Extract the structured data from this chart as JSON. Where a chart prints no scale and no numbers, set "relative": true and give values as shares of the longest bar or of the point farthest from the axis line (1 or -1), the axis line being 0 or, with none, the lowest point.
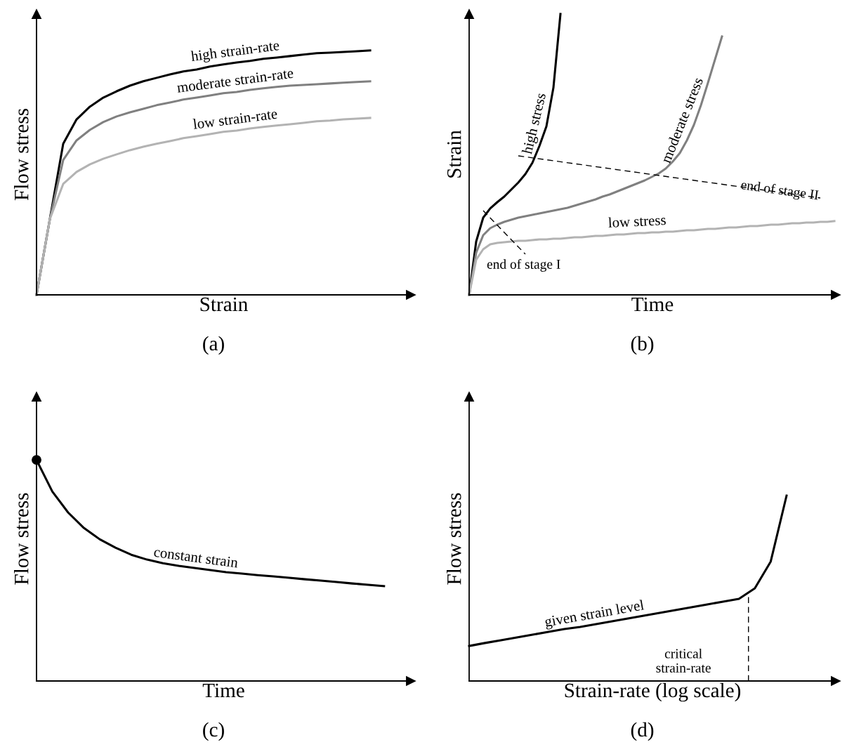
{
  "chart_data": [
    {
      "type": "line",
      "relative": true,
      "tick_labels": false,
      "title": "(a)",
      "xlabel": "Strain",
      "ylabel": "Flow stress",
      "categories": [
        null,
        null,
        null,
        null,
        null,
        null,
        null,
        null,
        null,
        null,
        null,
        null,
        null,
        null,
        null,
        null,
        null,
        null,
        null,
        null,
        null,
        null,
        null,
        null,
        null,
        null
      ],
      "series": [
        {
          "name": "high strain-rate",
          "color": "#000000",
          "values": [
            0,
            0.31,
            0.618,
            0.718,
            0.77,
            0.807,
            0.833,
            0.856,
            0.874,
            0.888,
            0.902,
            0.914,
            0.922,
            0.934,
            0.943,
            0.951,
            0.957,
            0.966,
            0.971,
            0.977,
            0.983,
            0.989,
            0.991,
            0.994,
            0.997,
            1
          ]
        },
        {
          "name": "moderate strain-rate",
          "color": "#808080",
          "values": [
            0,
            0.31,
            0.552,
            0.632,
            0.675,
            0.707,
            0.73,
            0.747,
            0.761,
            0.776,
            0.787,
            0.799,
            0.807,
            0.816,
            0.825,
            0.83,
            0.839,
            0.845,
            0.851,
            0.856,
            0.859,
            0.862,
            0.865,
            0.868,
            0.871,
            0.874
          ]
        },
        {
          "name": "low strain-rate",
          "color": "#b3b3b3",
          "values": [
            0,
            0.31,
            0.454,
            0.503,
            0.534,
            0.557,
            0.575,
            0.592,
            0.606,
            0.618,
            0.629,
            0.641,
            0.649,
            0.658,
            0.667,
            0.672,
            0.681,
            0.687,
            0.693,
            0.698,
            0.704,
            0.71,
            0.713,
            0.718,
            0.721,
            0.724
          ]
        }
      ]
    },
    {
      "type": "line",
      "relative": true,
      "tick_labels": false,
      "title": "(b)",
      "xlabel": "Time",
      "ylabel": "Strain",
      "annotations": [
        "end of stage I",
        "end of stage II"
      ],
      "categories": [
        null,
        null,
        null,
        null,
        null,
        null,
        null,
        null,
        null,
        null,
        null,
        null,
        null,
        null,
        null,
        null,
        null,
        null,
        null,
        null,
        null,
        null,
        null,
        null,
        null,
        null,
        null,
        null,
        null,
        null,
        null,
        null,
        null,
        null,
        null,
        null,
        null,
        null,
        null,
        null,
        null,
        null,
        null,
        null,
        null,
        null,
        null,
        null,
        null,
        null,
        null,
        null,
        null
      ],
      "series": [
        {
          "name": "high stress",
          "color": "#000000",
          "values": [
            0,
            0.19,
            0.275,
            0.308,
            0.33,
            0.35,
            0.375,
            0.4,
            0.43,
            0.47,
            0.53,
            0.6,
            0.738,
            1.0,
            null,
            null,
            null,
            null,
            null,
            null,
            null,
            null,
            null,
            null,
            null,
            null,
            null,
            null,
            null,
            null,
            null,
            null,
            null,
            null,
            null,
            null,
            null,
            null,
            null,
            null,
            null,
            null,
            null,
            null,
            null,
            null,
            null,
            null,
            null,
            null,
            null,
            null,
            null
          ]
        },
        {
          "name": "moderate stress",
          "color": "#808080",
          "values": [
            0,
            0.15,
            0.2125,
            0.2375,
            0.25,
            0.26,
            0.2675,
            0.275,
            0.28,
            0.285,
            0.29,
            0.295,
            0.3,
            0.305,
            0.31,
            0.3175,
            0.325,
            0.3325,
            0.34,
            0.35,
            0.3575,
            0.3675,
            0.3775,
            0.3875,
            0.3975,
            0.4075,
            0.42,
            0.4325,
            0.45,
            0.475,
            0.505,
            0.55,
            0.605,
            0.675,
            0.755,
            0.8375,
            0.92,
            null,
            null,
            null,
            null,
            null,
            null,
            null,
            null,
            null,
            null,
            null,
            null,
            null,
            null,
            null,
            null
          ]
        },
        {
          "name": "low stress",
          "color": "#b3b3b3",
          "values": [
            0,
            0.125,
            0.1625,
            0.18,
            0.185,
            0.1875,
            0.19,
            0.1925,
            0.1925,
            0.195,
            0.1975,
            0.1975,
            0.2,
            0.2,
            0.2025,
            0.205,
            0.205,
            0.2075,
            0.21,
            0.21,
            0.2125,
            0.215,
            0.215,
            0.2175,
            0.22,
            0.22,
            0.2225,
            0.2225,
            0.225,
            0.225,
            0.2275,
            0.23,
            0.23,
            0.2325,
            0.235,
            0.235,
            0.2375,
            0.24,
            0.24,
            0.2425,
            0.245,
            0.245,
            0.2475,
            0.25,
            0.25,
            0.2525,
            0.255,
            0.255,
            0.2575,
            0.2575,
            0.26,
            0.26,
            0.2625
          ]
        },
        {
          "color": "#000000",
          "line_style": "dashed",
          "values": [
            null,
            null,
            null,
            null,
            null,
            null,
            null,
            0.495,
            null,
            null,
            null,
            null,
            null,
            null,
            null,
            null,
            null,
            null,
            null,
            null,
            null,
            null,
            null,
            null,
            null,
            null,
            null,
            null,
            null,
            null,
            null,
            null,
            null,
            null,
            null,
            null,
            null,
            null,
            null,
            null,
            null,
            null,
            null,
            null,
            null,
            null,
            null,
            null,
            null,
            null,
            0.345,
            null,
            null
          ]
        },
        {
          "color": "#000000",
          "line_style": "dashed",
          "values": [
            null,
            null,
            0.3,
            null,
            null,
            null,
            null,
            null,
            0.145,
            null,
            null,
            null,
            null,
            null,
            null,
            null,
            null,
            null,
            null,
            null,
            null,
            null,
            null,
            null,
            null,
            null,
            null,
            null,
            null,
            null,
            null,
            null,
            null,
            null,
            null,
            null,
            null,
            null,
            null,
            null,
            null,
            null,
            null,
            null,
            null,
            null,
            null,
            null,
            null,
            null,
            null,
            null,
            null
          ]
        }
      ]
    },
    {
      "type": "line",
      "relative": true,
      "tick_labels": false,
      "title": "(c)",
      "xlabel": "Time",
      "ylabel": "Flow stress",
      "categories": [
        null,
        null,
        null,
        null,
        null,
        null,
        null,
        null,
        null,
        null,
        null,
        null,
        null,
        null,
        null,
        null,
        null,
        null,
        null,
        null,
        null,
        null,
        null
      ],
      "series": [
        {
          "name": "constant strain",
          "color": "#000000",
          "values": [
            1,
            0.857,
            0.762,
            0.692,
            0.641,
            0.603,
            0.571,
            0.549,
            0.533,
            0.521,
            0.511,
            0.502,
            0.492,
            0.486,
            0.479,
            0.473,
            0.467,
            0.46,
            0.454,
            0.448,
            0.441,
            0.435,
            0.429
          ]
        }
      ]
    },
    {
      "type": "line",
      "relative": true,
      "tick_labels": false,
      "title": "(d)",
      "xlabel": "Strain-rate (log scale)",
      "ylabel": "Flow stress",
      "categories": [
        null,
        null,
        null,
        null,
        null,
        null,
        null,
        null,
        null,
        null,
        null,
        null,
        null,
        null,
        null,
        null,
        null,
        null,
        null,
        null,
        null
      ],
      "annotations": [
        "critical\nstrain-rate"
      ],
      "series": [
        {
          "name": "given strain level",
          "color": "#000000",
          "values": [
            0.189,
            0.205,
            0.22,
            0.235,
            0.25,
            0.265,
            0.28,
            0.292,
            0.307,
            0.322,
            0.337,
            0.352,
            0.367,
            0.383,
            0.398,
            0.413,
            0.428,
            0.443,
            0.5,
            0.644,
            1
          ]
        }
      ]
    }
  ]
}
